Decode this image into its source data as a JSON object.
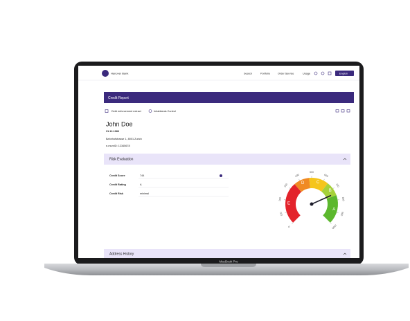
{
  "header": {
    "bank_name": "Hanover Bank",
    "nav": [
      "Search",
      "Portfolio",
      "Order Service",
      "Usage"
    ],
    "language": "English"
  },
  "report": {
    "title": "Credit Report",
    "actions": [
      "Debt enforcement extract",
      "Inhabitants Control"
    ],
    "name": "John Doe",
    "birth_date": "31.12.1980",
    "address": "Bahnhofstrasse 1, 8001 Zurich",
    "id": "e-mumID: 12345678"
  },
  "risk": {
    "title": "Risk Evaluation",
    "rows": [
      [
        "Credit Score",
        744
      ],
      [
        "Credit Rating",
        "A"
      ],
      [
        "Credit Risk",
        "minimal"
      ]
    ],
    "gauge": {
      "ticks": [
        0,
        100,
        200,
        300,
        400,
        500,
        600,
        700,
        800,
        900,
        1000
      ],
      "grades": [
        "E",
        "D",
        "C",
        "B",
        "A"
      ]
    }
  },
  "address_history": {
    "title": "Address History"
  },
  "device": {
    "label": "MacBook Pro"
  }
}
